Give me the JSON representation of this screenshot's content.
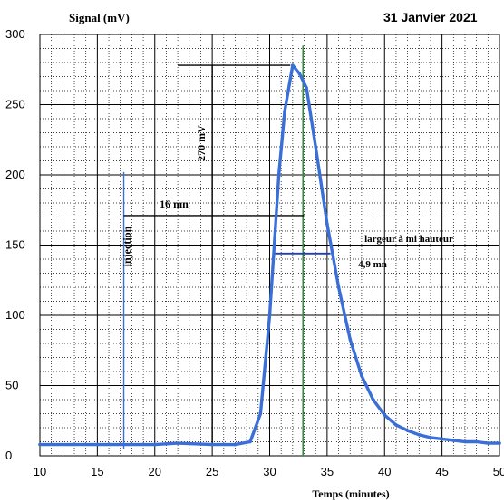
{
  "chart_data": {
    "type": "line",
    "title": "",
    "date": "31 Janvier 2021",
    "ylabel": "Signal (mV)",
    "xlabel": "Temps (minutes)",
    "xlim": [
      10,
      50
    ],
    "ylim": [
      0,
      300
    ],
    "x_ticks": [
      "10",
      "15",
      "20",
      "25",
      "30",
      "35",
      "40",
      "45",
      "50"
    ],
    "y_ticks": [
      "0",
      "50",
      "100",
      "150",
      "200",
      "250",
      "300"
    ],
    "grid": true,
    "series_color": "#3a6fd8",
    "series": [
      {
        "x": [
          10,
          15,
          20,
          22,
          25,
          27,
          28.3,
          29.2,
          30,
          30.8,
          31.3,
          32.0,
          32.6,
          33.2,
          34,
          35,
          36,
          37,
          38,
          39,
          40,
          41,
          42,
          43,
          44,
          45,
          46,
          47,
          48,
          49,
          50
        ],
        "y": [
          8,
          8,
          8,
          9,
          8,
          8,
          10,
          30,
          100,
          200,
          245,
          278,
          272,
          262,
          220,
          165,
          120,
          83,
          57,
          40,
          29,
          22,
          18,
          15,
          13,
          12,
          11,
          10,
          10,
          9,
          9
        ]
      }
    ],
    "annotations": {
      "injection_label": "injection",
      "retention_label": "16 mn",
      "height_label": "270 mV",
      "width_title": "largeur à mi hauteur",
      "width_value": "4,9 mn"
    },
    "annotation_colors": {
      "injection_line": "#3a6fd8",
      "peak_line": "#2f8f3a",
      "half_width_line": "#1f3fb8",
      "black_lines": "#000000"
    }
  }
}
